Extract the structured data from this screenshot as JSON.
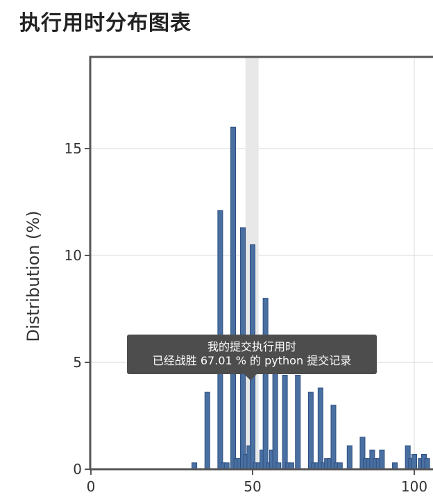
{
  "page": {
    "title": "执行用时分布图表"
  },
  "tooltip": {
    "line1": "我的提交执行用时",
    "line2": "已经战胜 67.01 % 的 python 提交记录"
  },
  "chart_data": {
    "type": "bar",
    "title": "执行用时分布图表",
    "xlabel": "",
    "ylabel": "Distribution (%)",
    "xlim": [
      0,
      105
    ],
    "ylim": [
      0,
      19
    ],
    "xticks": [
      0,
      50,
      100
    ],
    "yticks": [
      0,
      5,
      10,
      15
    ],
    "grid": true,
    "highlight_x": 48,
    "colors": {
      "bar": "#4a6fa1",
      "bar_edge": "#2d4f80",
      "highlight": "#e8e8e8"
    },
    "x": [
      32,
      36,
      40,
      41,
      42,
      44,
      45,
      46,
      47,
      48,
      49,
      50,
      51,
      52,
      53,
      54,
      55,
      56,
      57,
      58,
      60,
      61,
      62,
      64,
      68,
      69,
      70,
      71,
      72,
      73,
      74,
      75,
      76,
      77,
      80,
      84,
      85,
      86,
      87,
      88,
      89,
      90,
      94,
      98,
      99,
      100,
      102,
      103,
      104
    ],
    "values": [
      0.3,
      3.6,
      12.1,
      0.3,
      0.3,
      16.0,
      0.5,
      0.5,
      11.3,
      0.7,
      1.1,
      10.5,
      0.3,
      0.3,
      0.9,
      8.0,
      0.3,
      0.9,
      5.2,
      0.3,
      4.4,
      0.3,
      0.3,
      4.4,
      3.6,
      0.3,
      0.3,
      3.8,
      0.3,
      0.5,
      0.5,
      3.0,
      0.3,
      0.3,
      1.1,
      1.5,
      0.5,
      0.5,
      0.9,
      0.5,
      0.5,
      0.9,
      0.3,
      1.1,
      0.5,
      0.7,
      0.5,
      0.7,
      0.5
    ]
  }
}
